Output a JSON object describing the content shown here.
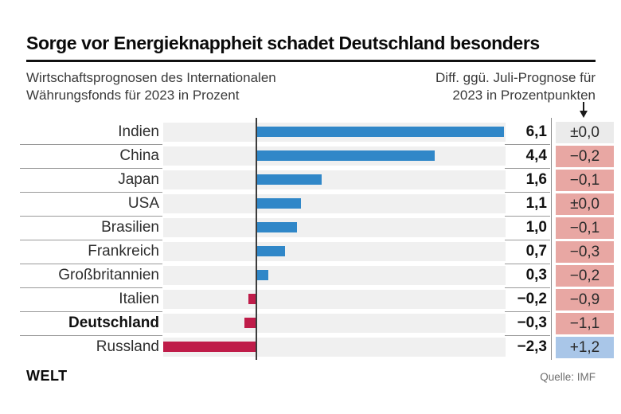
{
  "header": {
    "title": "Sorge vor Energieknappheit schadet Deutschland besonders",
    "subtitle_left_line1": "Wirtschaftsprognosen des Internationalen",
    "subtitle_left_line2": "Währungsfonds für 2023 in Prozent",
    "subtitle_right_line1": "Diff. ggü. Juli-Prognose für",
    "subtitle_right_line2": "2023 in Prozentpunkten"
  },
  "chart_data": {
    "type": "bar",
    "orientation": "horizontal",
    "title": "Sorge vor Energieknappheit schadet Deutschland besonders",
    "value_unit": "Prozent",
    "diff_unit": "Prozentpunkte",
    "xlim": [
      -2.5,
      6.3
    ],
    "grid": false,
    "categories": [
      "Indien",
      "China",
      "Japan",
      "USA",
      "Brasilien",
      "Frankreich",
      "Großbritannien",
      "Italien",
      "Deutschland",
      "Russland"
    ],
    "series": [
      {
        "name": "Wirtschaftsprognose 2023 in Prozent",
        "values": [
          6.1,
          4.4,
          1.6,
          1.1,
          1.0,
          0.7,
          0.3,
          -0.2,
          -0.3,
          -2.3
        ]
      },
      {
        "name": "Diff. ggü. Juli-Prognose für 2023 in Prozentpunkten",
        "values": [
          0.0,
          -0.2,
          -0.1,
          0.0,
          -0.1,
          -0.3,
          -0.2,
          -0.9,
          -1.1,
          1.2
        ]
      }
    ],
    "rows": [
      {
        "label": "Indien",
        "value": 6.1,
        "value_label": "6,1",
        "diff": 0.0,
        "diff_label": "±0,0",
        "diff_style": "neutral",
        "bold": false
      },
      {
        "label": "China",
        "value": 4.4,
        "value_label": "4,4",
        "diff": -0.2,
        "diff_label": "−0,2",
        "diff_style": "down",
        "bold": false
      },
      {
        "label": "Japan",
        "value": 1.6,
        "value_label": "1,6",
        "diff": -0.1,
        "diff_label": "−0,1",
        "diff_style": "down",
        "bold": false
      },
      {
        "label": "USA",
        "value": 1.1,
        "value_label": "1,1",
        "diff": 0.0,
        "diff_label": "±0,0",
        "diff_style": "down",
        "bold": false
      },
      {
        "label": "Brasilien",
        "value": 1.0,
        "value_label": "1,0",
        "diff": -0.1,
        "diff_label": "−0,1",
        "diff_style": "down",
        "bold": false
      },
      {
        "label": "Frankreich",
        "value": 0.7,
        "value_label": "0,7",
        "diff": -0.3,
        "diff_label": "−0,3",
        "diff_style": "down",
        "bold": false
      },
      {
        "label": "Großbritannien",
        "value": 0.3,
        "value_label": "0,3",
        "diff": -0.2,
        "diff_label": "−0,2",
        "diff_style": "down",
        "bold": false
      },
      {
        "label": "Italien",
        "value": -0.2,
        "value_label": "−0,2",
        "diff": -0.9,
        "diff_label": "−0,9",
        "diff_style": "down",
        "bold": false
      },
      {
        "label": "Deutschland",
        "value": -0.3,
        "value_label": "−0,3",
        "diff": -1.1,
        "diff_label": "−1,1",
        "diff_style": "down",
        "bold": true
      },
      {
        "label": "Russland",
        "value": -2.3,
        "value_label": "−2,3",
        "diff": 1.2,
        "diff_label": "+1,2",
        "diff_style": "up",
        "bold": false
      }
    ],
    "colors": {
      "bar_positive": "#3087c8",
      "bar_negative": "#bf1c49",
      "diff_neutral_bg": "#ebebeb",
      "diff_down_bg": "#e8a7a3",
      "diff_up_bg": "#a9c6e8",
      "band_bg": "#f0f0f0"
    }
  },
  "footer": {
    "logo_text": "WELT",
    "source": "Quelle: IMF"
  }
}
